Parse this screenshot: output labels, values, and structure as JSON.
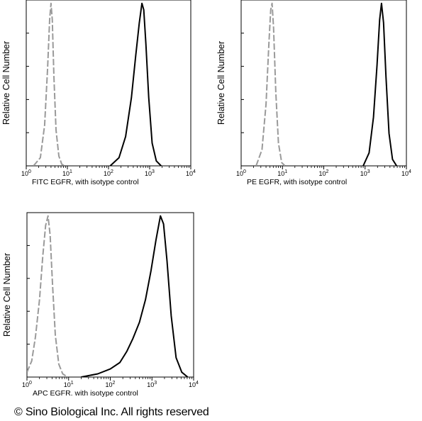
{
  "chart_data": [
    {
      "type": "line",
      "ylabel": "Relative Cell Number",
      "xlabel": "FITC EGFR,  with isotype control",
      "x_scale": "log",
      "xlim": [
        1,
        10000
      ],
      "ylim": [
        0,
        100
      ],
      "x_tick_labels": [
        {
          "base": "10",
          "exp": "0"
        },
        {
          "base": "10",
          "exp": "1"
        },
        {
          "base": "10",
          "exp": "2"
        },
        {
          "base": "10",
          "exp": "3"
        },
        {
          "base": "10",
          "exp": "4"
        }
      ],
      "series": [
        {
          "color": "#9a9a9a",
          "dashed": true,
          "x": [
            1.5,
            2.2,
            2.8,
            3.3,
            3.7,
            4.0,
            4.3,
            4.7,
            5.3,
            6.2,
            7.3,
            8.5
          ],
          "y": [
            0,
            5,
            25,
            60,
            90,
            100,
            90,
            55,
            22,
            6,
            1,
            0
          ]
        },
        {
          "color": "#000000",
          "dashed": false,
          "x": [
            110,
            180,
            260,
            360,
            460,
            560,
            650,
            720,
            810,
            950,
            1150,
            1450,
            1900
          ],
          "y": [
            0,
            5,
            18,
            42,
            68,
            88,
            100,
            96,
            75,
            42,
            14,
            3,
            0
          ]
        }
      ]
    },
    {
      "type": "line",
      "ylabel": "Relative Cell Number",
      "xlabel": "PE EGFR,  with isotype control",
      "x_scale": "log",
      "xlim": [
        1,
        10000
      ],
      "ylim": [
        0,
        100
      ],
      "x_tick_labels": [
        {
          "base": "10",
          "exp": "0"
        },
        {
          "base": "10",
          "exp": "1"
        },
        {
          "base": "10",
          "exp": "2"
        },
        {
          "base": "10",
          "exp": "3"
        },
        {
          "base": "10",
          "exp": "4"
        }
      ],
      "series": [
        {
          "color": "#9a9a9a",
          "dashed": true,
          "x": [
            2.3,
            3.2,
            4.0,
            4.7,
            5.2,
            5.6,
            6.1,
            6.9,
            8.0,
            9.6,
            11.5
          ],
          "y": [
            0,
            10,
            38,
            75,
            96,
            100,
            85,
            45,
            14,
            2,
            0
          ]
        },
        {
          "color": "#000000",
          "dashed": false,
          "x": [
            900,
            1250,
            1600,
            1950,
            2250,
            2500,
            2800,
            3200,
            3800,
            4600,
            5800
          ],
          "y": [
            0,
            8,
            30,
            62,
            90,
            100,
            88,
            55,
            20,
            4,
            0
          ]
        }
      ]
    },
    {
      "type": "line",
      "ylabel": "Relative Cell Number",
      "xlabel": "APC EGFR.  with isotype control",
      "x_scale": "log",
      "xlim": [
        1,
        10000
      ],
      "ylim": [
        0,
        100
      ],
      "x_tick_labels": [
        {
          "base": "10",
          "exp": "0"
        },
        {
          "base": "10",
          "exp": "1"
        },
        {
          "base": "10",
          "exp": "2"
        },
        {
          "base": "10",
          "exp": "3"
        },
        {
          "base": "10",
          "exp": "4"
        }
      ],
      "series": [
        {
          "color": "#9a9a9a",
          "dashed": true,
          "x": [
            1.0,
            1.3,
            1.6,
            2.0,
            2.4,
            2.8,
            3.2,
            3.6,
            4.1,
            4.8,
            5.8,
            7.2,
            9.5
          ],
          "y": [
            3,
            10,
            25,
            48,
            75,
            94,
            100,
            88,
            58,
            26,
            8,
            2,
            0
          ]
        },
        {
          "color": "#000000",
          "dashed": false,
          "x": [
            20,
            50,
            100,
            170,
            250,
            350,
            500,
            700,
            950,
            1250,
            1600,
            1900,
            2300,
            2900,
            3800,
            5200,
            7200
          ],
          "y": [
            0,
            2,
            5,
            9,
            16,
            24,
            34,
            48,
            66,
            85,
            100,
            95,
            72,
            38,
            12,
            3,
            0
          ]
        }
      ]
    }
  ],
  "footer": {
    "copyright": "© Sino Biological Inc. All rights reserved"
  }
}
